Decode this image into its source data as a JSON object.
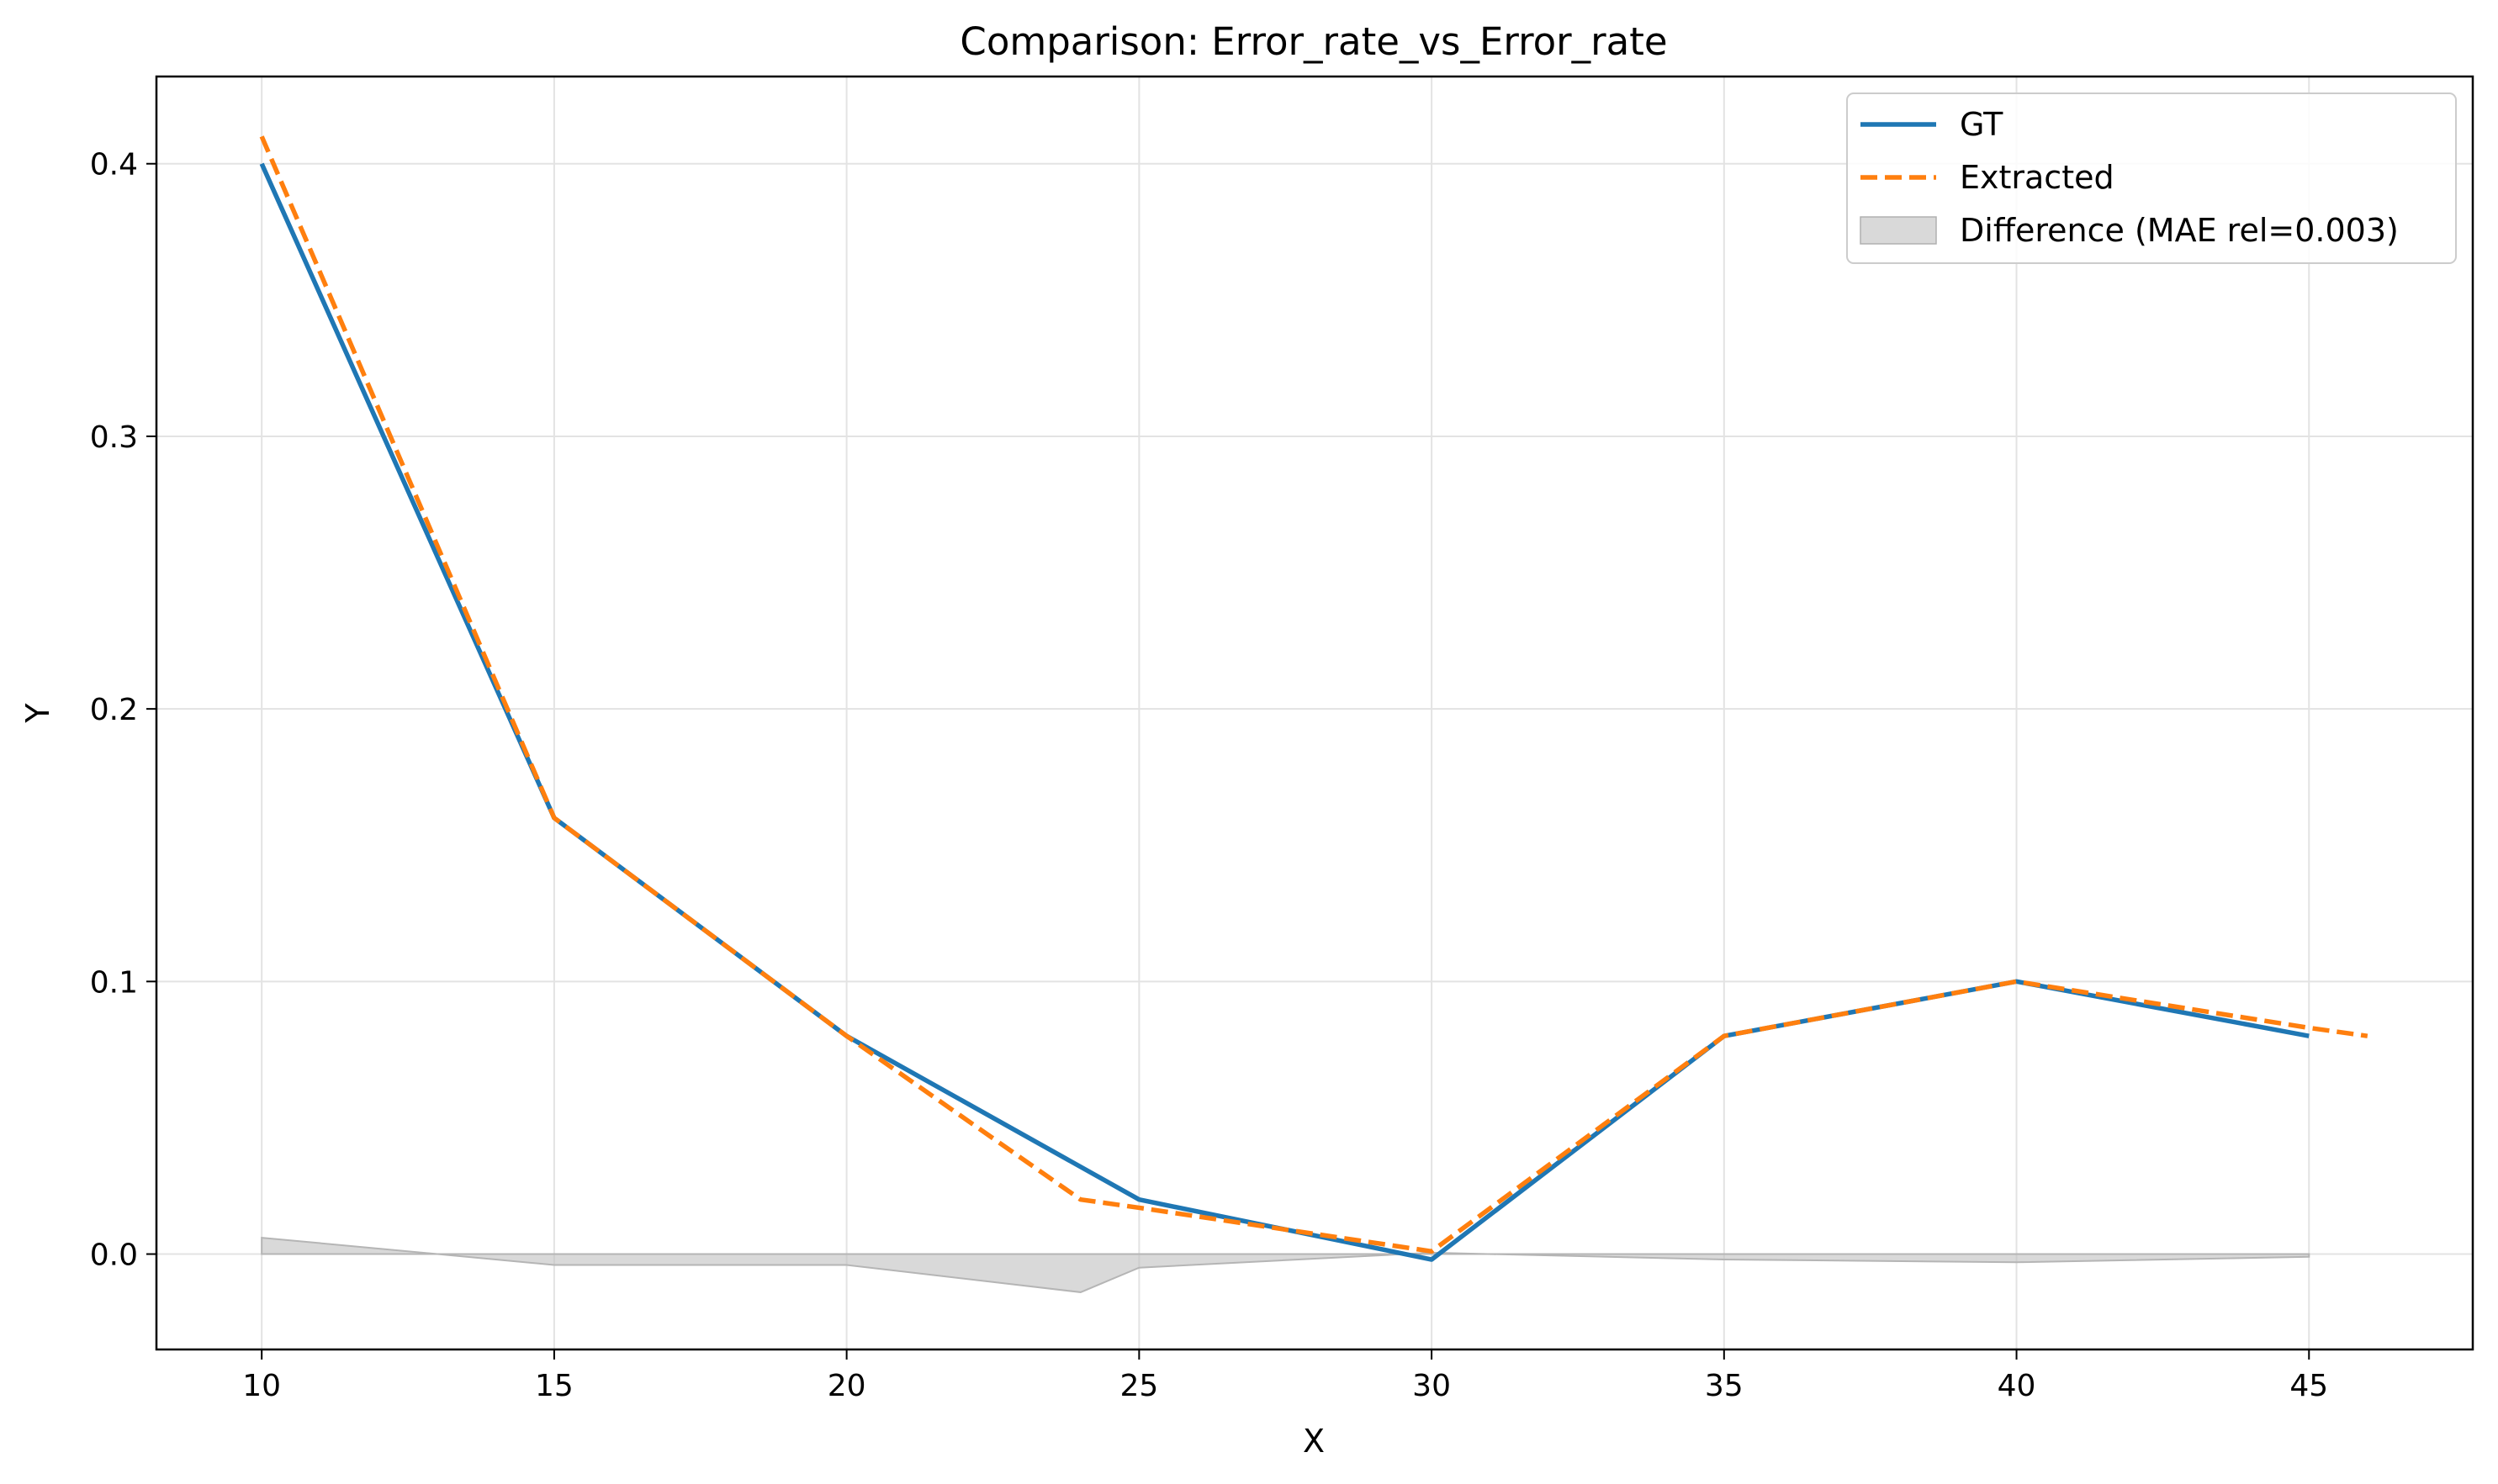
{
  "chart_data": {
    "type": "line",
    "title": "Comparison: Error_rate_vs_Error_rate",
    "xlabel": "X",
    "ylabel": "Y",
    "xlim": [
      8.2,
      47.8
    ],
    "ylim": [
      -0.035,
      0.432
    ],
    "xticks": [
      10,
      15,
      20,
      25,
      30,
      35,
      40,
      45
    ],
    "xtick_labels": [
      "10",
      "15",
      "20",
      "25",
      "30",
      "35",
      "40",
      "45"
    ],
    "yticks": [
      0.0,
      0.1,
      0.2,
      0.3,
      0.4
    ],
    "ytick_labels": [
      "0.0",
      "0.1",
      "0.2",
      "0.3",
      "0.4"
    ],
    "grid": true,
    "legend_position": "top-right",
    "series": [
      {
        "name": "GT",
        "style": "solid",
        "color": "#1f77b4",
        "x": [
          10,
          15,
          20,
          25,
          30,
          35,
          40,
          45
        ],
        "y": [
          0.4,
          0.16,
          0.08,
          0.02,
          -0.002,
          0.08,
          0.1,
          0.08
        ]
      },
      {
        "name": "Extracted",
        "style": "dashed",
        "color": "#ff7f0e",
        "x": [
          10,
          15,
          20,
          24,
          25,
          30,
          35,
          40,
          45,
          46
        ],
        "y": [
          0.41,
          0.16,
          0.08,
          0.02,
          0.017,
          0.001,
          0.08,
          0.1,
          0.083,
          0.08
        ]
      }
    ],
    "difference": {
      "name": "Difference (MAE rel=0.003)",
      "color": "#c0c0c0",
      "x": [
        10,
        15,
        20,
        24,
        25,
        30,
        35,
        40,
        45
      ],
      "y": [
        0.006,
        -0.004,
        -0.004,
        -0.014,
        -0.005,
        0.0005,
        -0.002,
        -0.003,
        -0.001
      ]
    }
  }
}
